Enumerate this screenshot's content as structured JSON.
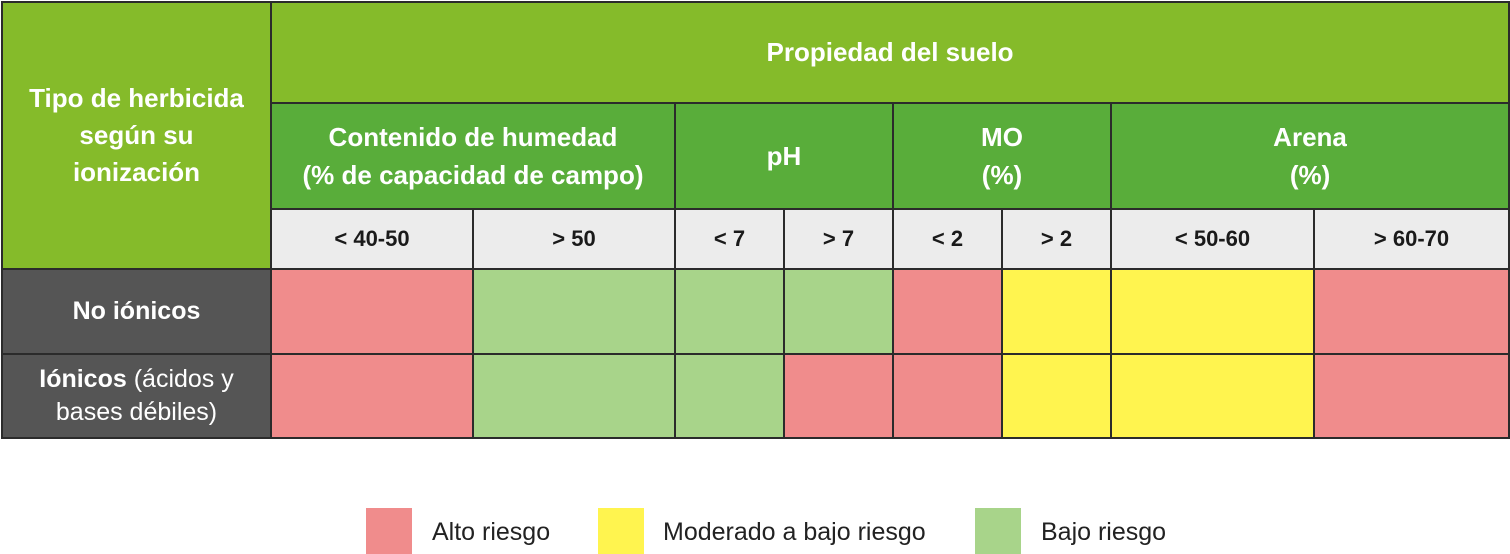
{
  "table": {
    "type_header": [
      "Tipo de herbicida",
      "según su",
      "ionización"
    ],
    "main_header": "Propiedad del suelo",
    "groups": [
      {
        "lines": [
          "Contenido de humedad",
          "(% de capacidad de campo)"
        ]
      },
      {
        "lines": [
          "pH"
        ]
      },
      {
        "lines": [
          "MO",
          "(%)"
        ]
      },
      {
        "lines": [
          "Arena",
          "(%)"
        ]
      }
    ],
    "ranges": [
      "< 40-50",
      "> 50",
      "< 7",
      "> 7",
      "< 2",
      "> 2",
      "< 50-60",
      "> 60-70"
    ],
    "rows": [
      {
        "label_bold": "No iónicos",
        "label_rest": "",
        "risks": [
          "alto",
          "bajo",
          "bajo",
          "bajo",
          "alto",
          "moderado",
          "moderado",
          "alto"
        ]
      },
      {
        "label_bold": "Iónicos",
        "label_rest": " (ácidos y bases débiles)",
        "risks": [
          "alto",
          "bajo",
          "bajo",
          "alto",
          "alto",
          "moderado",
          "moderado",
          "alto"
        ]
      }
    ]
  },
  "legend": [
    {
      "key": "alto",
      "label": "Alto riesgo",
      "color": "#f08c8c"
    },
    {
      "key": "moderado",
      "label": "Moderado a bajo riesgo",
      "color": "#fff44f"
    },
    {
      "key": "bajo",
      "label": "Bajo riesgo",
      "color": "#a8d48a"
    }
  ],
  "colors": {
    "header_green": "#85bb2a",
    "subheader_green": "#59ad3a",
    "range_gray": "#ececec",
    "row_label_gray": "#555555"
  }
}
